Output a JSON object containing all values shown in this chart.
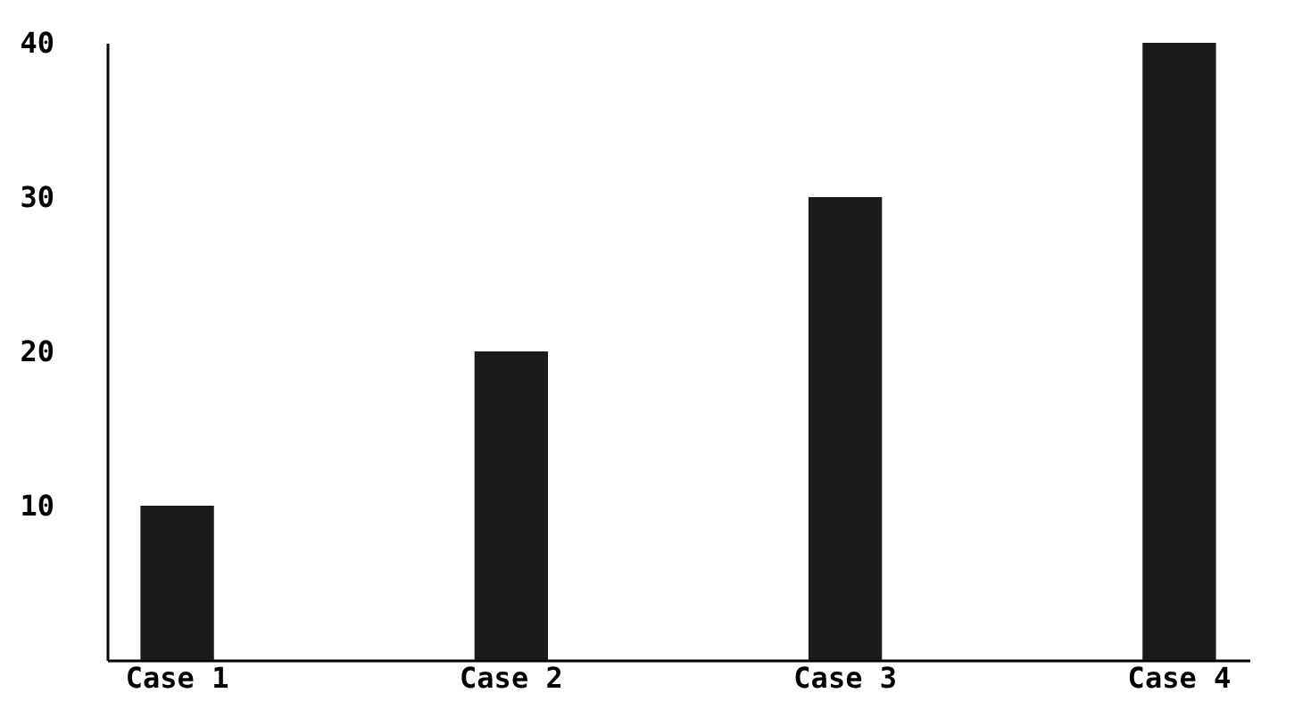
{
  "chart_data": {
    "type": "bar",
    "categories": [
      "Case 1",
      "Case 2",
      "Case 3",
      "Case 4"
    ],
    "values": [
      10,
      20,
      30,
      40
    ],
    "color": "#1a1a1a",
    "ylim": [
      0,
      40
    ],
    "yticks": [
      10,
      20,
      30,
      40
    ]
  }
}
